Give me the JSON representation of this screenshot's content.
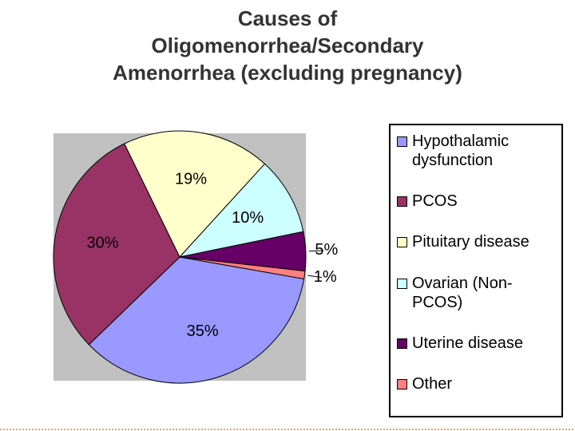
{
  "chart_data": {
    "type": "pie",
    "title": [
      "Causes of",
      "Oligomenorrhea/Secondary",
      "Amenorrhea (excluding pregnancy)"
    ],
    "categories": [
      "Hypothalamic dysfunction",
      "PCOS",
      "Pituitary disease",
      "Ovarian (Non-PCOS)",
      "Uterine disease",
      "Other"
    ],
    "values": [
      35,
      30,
      19,
      10,
      5,
      1
    ],
    "value_labels": [
      "35%",
      "30%",
      "19%",
      "10%",
      "5%",
      "1%"
    ],
    "colors": [
      "#9999ff",
      "#993366",
      "#ffffcc",
      "#ccffff",
      "#660066",
      "#ff8080"
    ],
    "legend": "right"
  }
}
